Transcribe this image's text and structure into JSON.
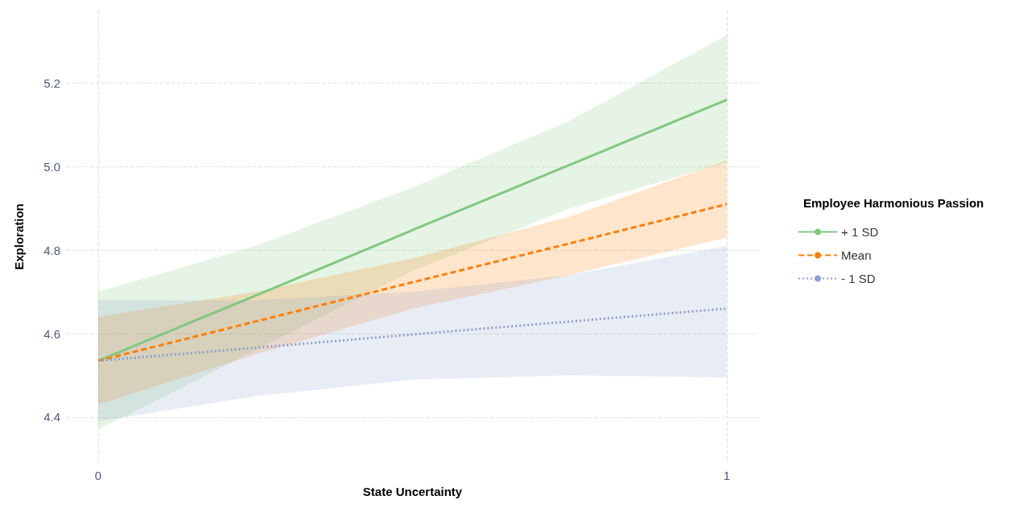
{
  "chart_data": {
    "type": "line",
    "xlabel": "State Uncertainty",
    "ylabel": "Exploration",
    "legend_title": "Employee Harmonious Passion",
    "legend": "right",
    "grid": true,
    "x": [
      0,
      0.25,
      0.5,
      0.75,
      1
    ],
    "xlim": [
      -0.05,
      1.05
    ],
    "xticks": [
      0,
      1
    ],
    "ylim": [
      4.29,
      5.374
    ],
    "yticks": [
      4.4,
      4.6,
      4.8,
      {
        "value": 5,
        "label": "5.0"
      },
      5.2
    ],
    "series": [
      {
        "name": "+ 1 SD",
        "color": "#7fc97f",
        "line_style": "solid",
        "values": [
          4.535,
          4.691,
          4.848,
          5.004,
          5.16
        ],
        "lower": [
          4.37,
          4.56,
          4.75,
          4.9,
          5.01
        ],
        "upper": [
          4.7,
          4.81,
          4.95,
          5.11,
          5.315
        ]
      },
      {
        "name": "Mean",
        "color": "#ff7f00",
        "line_style": "dashed",
        "values": [
          4.535,
          4.629,
          4.723,
          4.816,
          4.91
        ],
        "lower": [
          4.43,
          4.55,
          4.66,
          4.74,
          4.83
        ],
        "upper": [
          4.64,
          4.7,
          4.78,
          4.88,
          5.015
        ]
      },
      {
        "name": "- 1 SD",
        "color": "#8da0cb",
        "line_style": "dotted",
        "values": [
          4.535,
          4.566,
          4.598,
          4.629,
          4.66
        ],
        "lower": [
          4.39,
          4.45,
          4.49,
          4.5,
          4.495
        ],
        "upper": [
          4.68,
          4.68,
          4.7,
          4.74,
          4.81
        ]
      }
    ]
  }
}
